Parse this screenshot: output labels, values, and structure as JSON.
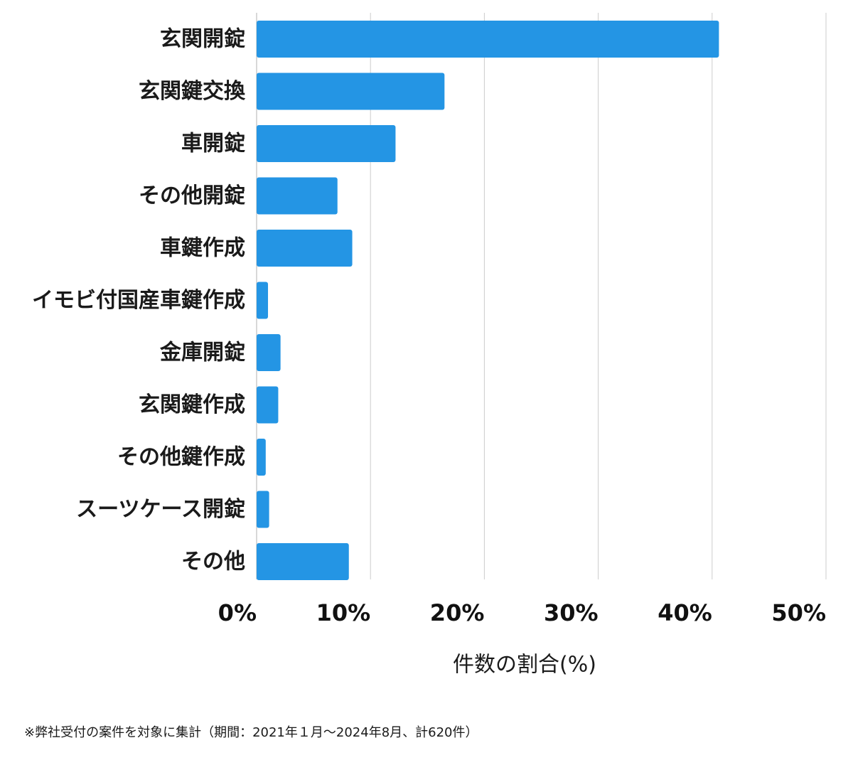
{
  "chart_data": {
    "type": "bar",
    "orientation": "horizontal",
    "categories": [
      "玄関開錠",
      "玄関鍵交換",
      "車開錠",
      "その他開錠",
      "車鍵作成",
      "イモビ付国産車鍵作成",
      "金庫開錠",
      "玄関鍵作成",
      "その他鍵作成",
      "スーツケース開錠",
      "その他"
    ],
    "values": [
      40.6,
      16.5,
      12.2,
      7.1,
      8.4,
      1.0,
      2.1,
      1.9,
      0.8,
      1.1,
      8.1
    ],
    "xlabel": "件数の割合(%)",
    "ylabel": "",
    "xlim": [
      0,
      50
    ],
    "xticks": [
      "0%",
      "10%",
      "20%",
      "30%",
      "40%",
      "50%"
    ],
    "grid": "vertical",
    "bar_color": "#2495e4",
    "grid_color": "#cccccc"
  },
  "footnote": "※弊社受付の案件を対象に集計（期間：2021年１月〜2024年8月、計620件）"
}
